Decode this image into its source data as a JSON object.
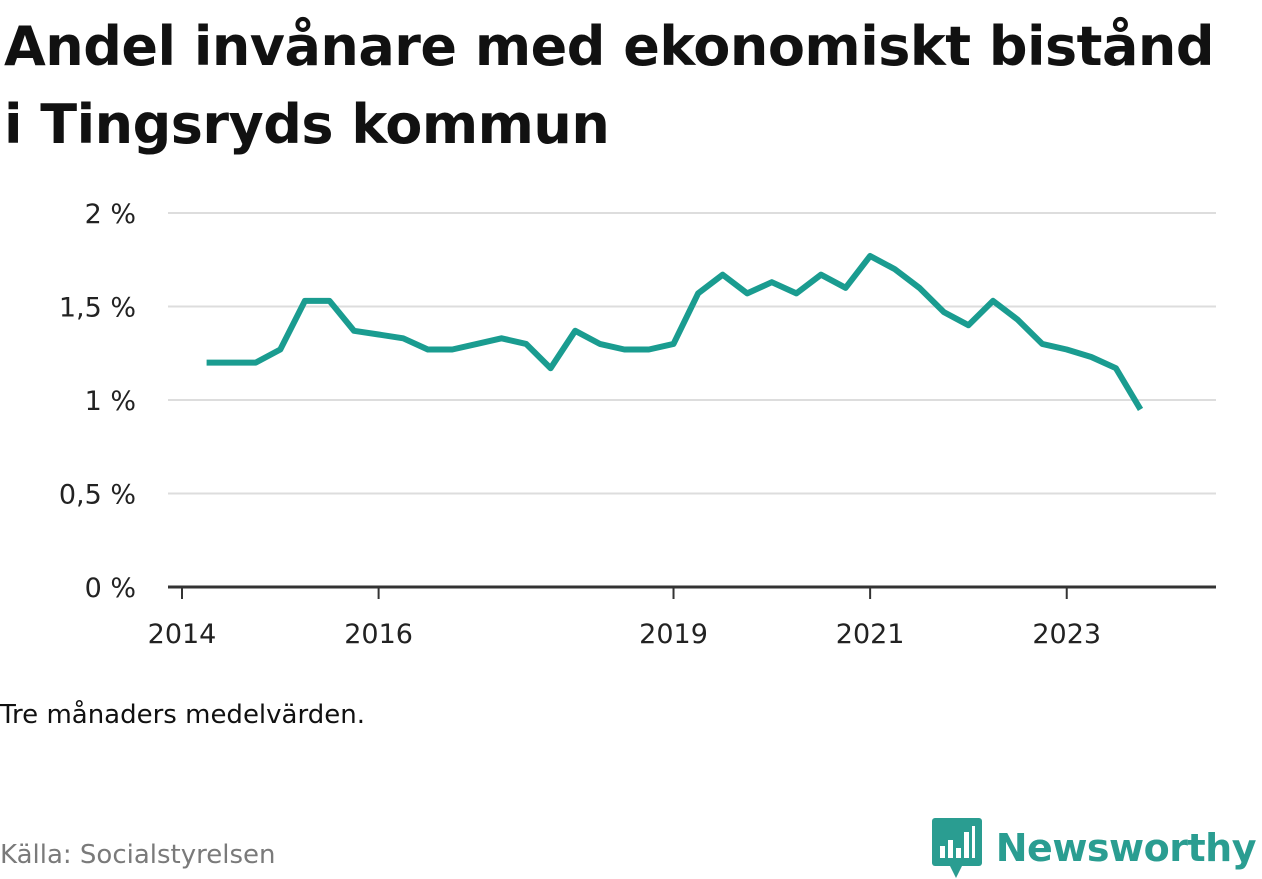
{
  "title": "Andel invånare med ekonomiskt bistånd i Tingsryds kommun",
  "note": "Tre månaders medelvärden.",
  "source": "Källa: Socialstyrelsen",
  "brand": {
    "name": "Newsworthy",
    "icon": "newsworthy-logo-icon",
    "color": "#2a9d91"
  },
  "chart_data": {
    "type": "line",
    "title": "Andel invånare med ekonomiskt bistånd i Tingsryds kommun",
    "xlabel": "",
    "ylabel": "",
    "ylim": [
      0,
      2
    ],
    "xlim": [
      "2014-01",
      "2024-06"
    ],
    "grid": true,
    "legend": "none",
    "line_color": "#1a9c90",
    "y_ticks": [
      {
        "value": 0,
        "label": "0 %"
      },
      {
        "value": 0.5,
        "label": "0,5 %"
      },
      {
        "value": 1,
        "label": "1 %"
      },
      {
        "value": 1.5,
        "label": "1,5 %"
      },
      {
        "value": 2,
        "label": "2 %"
      }
    ],
    "x_ticks": [
      {
        "value": "2014-01",
        "label": "2014"
      },
      {
        "value": "2016-01",
        "label": "2016"
      },
      {
        "value": "2019-01",
        "label": "2019"
      },
      {
        "value": "2021-01",
        "label": "2021"
      },
      {
        "value": "2023-01",
        "label": "2023"
      }
    ],
    "series": [
      {
        "x": [
          "2014-04",
          "2014-07",
          "2014-10",
          "2015-01",
          "2015-04",
          "2015-07",
          "2015-10",
          "2016-01",
          "2016-04",
          "2016-07",
          "2016-10",
          "2017-01",
          "2017-04",
          "2017-07",
          "2017-10",
          "2018-01",
          "2018-04",
          "2018-07",
          "2018-10",
          "2019-01",
          "2019-04",
          "2019-07",
          "2019-10",
          "2020-01",
          "2020-04",
          "2020-07",
          "2020-10",
          "2021-01",
          "2021-04",
          "2021-07",
          "2021-10",
          "2022-01",
          "2022-04",
          "2022-07",
          "2022-10",
          "2023-01",
          "2023-04",
          "2023-07",
          "2023-10"
        ],
        "values": [
          1.2,
          1.2,
          1.2,
          1.27,
          1.53,
          1.53,
          1.37,
          1.35,
          1.33,
          1.27,
          1.27,
          1.3,
          1.33,
          1.3,
          1.17,
          1.37,
          1.3,
          1.27,
          1.27,
          1.3,
          1.57,
          1.67,
          1.57,
          1.63,
          1.57,
          1.67,
          1.6,
          1.77,
          1.7,
          1.6,
          1.47,
          1.4,
          1.53,
          1.43,
          1.3,
          1.27,
          1.23,
          1.17,
          0.95
        ]
      }
    ]
  }
}
